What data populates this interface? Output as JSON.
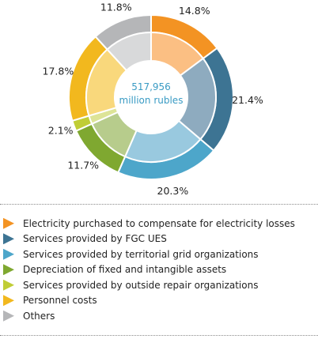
{
  "chart_data": {
    "type": "pie",
    "center_value": "517,956",
    "center_unit": "million rubles",
    "slices": [
      {
        "label": "Electricity purchased to compensate for electricity losses",
        "value": 14.8,
        "display": "14.8%",
        "outer_color": "#f39323",
        "inner_color": "#fbbf83"
      },
      {
        "label": "Services provided by FGC UES",
        "value": 21.4,
        "display": "21.4%",
        "outer_color": "#3d7493",
        "inner_color": "#8eabbf"
      },
      {
        "label": "Services provided by territorial grid organizations",
        "value": 20.3,
        "display": "20.3%",
        "outer_color": "#4da6ca",
        "inner_color": "#99c9df"
      },
      {
        "label": "Depreciation of fixed and intangible assets",
        "value": 11.7,
        "display": "11.7%",
        "outer_color": "#7fa830",
        "inner_color": "#b7cc8c"
      },
      {
        "label": "Services provided by outside repair organizations",
        "value": 2.1,
        "display": "2.1%",
        "outer_color": "#c0cd35",
        "inner_color": "#dde497"
      },
      {
        "label": "Personnel costs",
        "value": 17.8,
        "display": "17.8%",
        "outer_color": "#f2b81e",
        "inner_color": "#f9d87c"
      },
      {
        "label": "Others",
        "value": 11.8,
        "display": "11.8%",
        "outer_color": "#b5b6b8",
        "inner_color": "#d8d9da"
      }
    ]
  }
}
